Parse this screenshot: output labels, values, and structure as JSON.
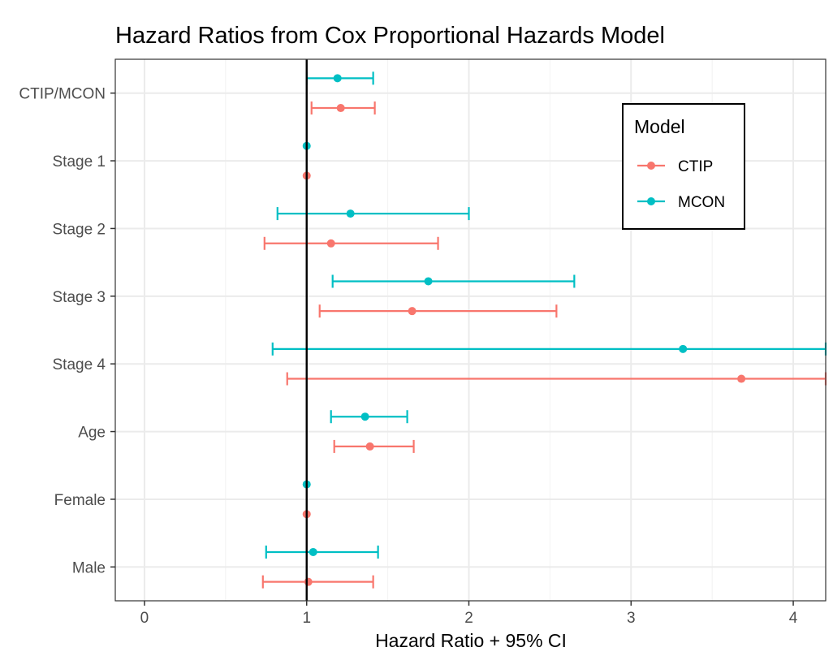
{
  "chart_data": {
    "type": "forest",
    "title": "Hazard Ratios from Cox Proportional Hazards Model",
    "xlabel": "Hazard Ratio + 95% CI",
    "ylabel": "",
    "xlim": [
      -0.18,
      4.2
    ],
    "xticks": [
      0,
      1,
      2,
      3,
      4
    ],
    "reference_line": 1,
    "grid": true,
    "categories": [
      "CTIP/MCON",
      "Stage 1",
      "Stage 2",
      "Stage 3",
      "Stage 4",
      "Age",
      "Female",
      "Male"
    ],
    "series": [
      {
        "name": "CTIP",
        "color": "#F8766D",
        "estimates": [
          1.21,
          1.0,
          1.15,
          1.65,
          3.68,
          1.39,
          1.0,
          1.01
        ],
        "lower": [
          1.03,
          1.0,
          0.74,
          1.08,
          0.88,
          1.17,
          1.0,
          0.73
        ],
        "upper": [
          1.42,
          1.0,
          1.81,
          2.54,
          4.2,
          1.66,
          1.0,
          1.41
        ]
      },
      {
        "name": "MCON",
        "color": "#00BFC4",
        "estimates": [
          1.19,
          1.0,
          1.27,
          1.75,
          3.32,
          1.36,
          1.0,
          1.04
        ],
        "lower": [
          1.0,
          1.0,
          0.82,
          1.16,
          0.79,
          1.15,
          1.0,
          0.75
        ],
        "upper": [
          1.41,
          1.0,
          2.0,
          2.65,
          4.2,
          1.62,
          1.0,
          1.44
        ]
      }
    ],
    "legend": {
      "title": "Model",
      "position": "top-right"
    }
  }
}
